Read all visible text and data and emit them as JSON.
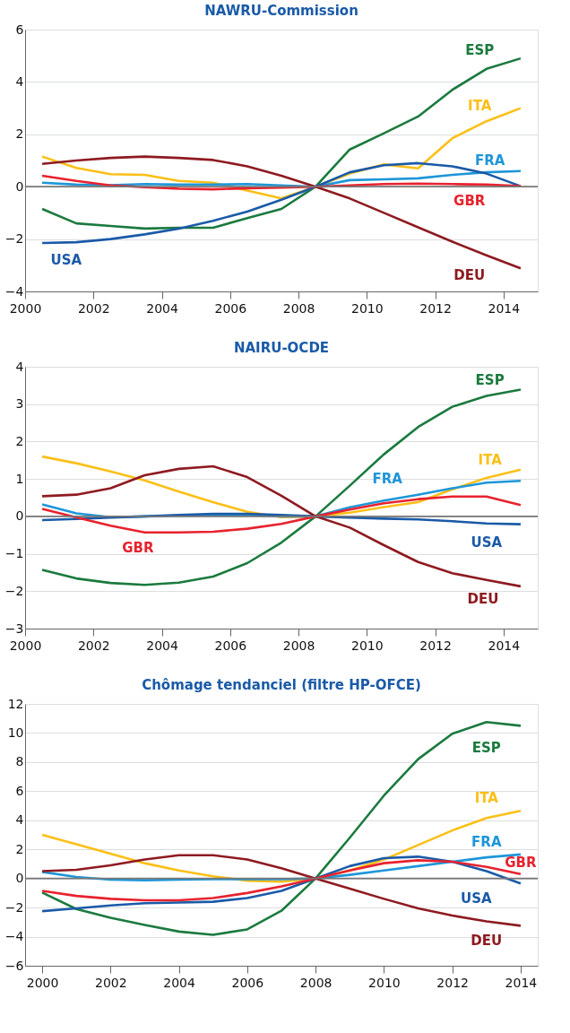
{
  "chart_data": [
    {
      "type": "line",
      "title": "NAWRU-Commission",
      "grid": "y",
      "legend": false,
      "xlim": [
        2000,
        2015
      ],
      "xticks": [
        2000,
        2002,
        2004,
        2006,
        2008,
        2010,
        2012,
        2014
      ],
      "ylim": [
        -4,
        6
      ],
      "yticks": [
        -4,
        -2,
        0,
        2,
        4,
        6
      ],
      "x": [
        2000.5,
        2001.5,
        2002.5,
        2003.5,
        2004.5,
        2005.5,
        2006.5,
        2007.5,
        2008.5,
        2009.5,
        2010.5,
        2011.5,
        2012.5,
        2013.5,
        2014.5
      ],
      "ref_lines": [
        {
          "axis": "y",
          "value": 0,
          "color": "#777777"
        }
      ],
      "series": [
        {
          "name": "ESP",
          "color": "#1a7a3e",
          "values": [
            -0.85,
            -1.4,
            -1.5,
            -1.6,
            -1.57,
            -1.57,
            -1.2,
            -0.85,
            0,
            1.42,
            2.04,
            2.68,
            3.7,
            4.5,
            4.9
          ]
        },
        {
          "name": "ITA",
          "color": "#fbbf16",
          "values": [
            1.15,
            0.72,
            0.48,
            0.45,
            0.22,
            0.15,
            -0.15,
            -0.45,
            0,
            0.5,
            0.85,
            0.7,
            1.85,
            2.5,
            3.0
          ]
        },
        {
          "name": "FRA",
          "color": "#1e96d8",
          "values": [
            0.15,
            0.08,
            0.06,
            0.1,
            0.08,
            0.08,
            0.1,
            0.05,
            0,
            0.25,
            0.28,
            0.32,
            0.45,
            0.55,
            0.6
          ]
        },
        {
          "name": "USA",
          "color": "#1a5aa8",
          "values": [
            -2.15,
            -2.12,
            -2.0,
            -1.82,
            -1.6,
            -1.3,
            -0.95,
            -0.5,
            0,
            0.55,
            0.82,
            0.9,
            0.78,
            0.5,
            0.02
          ]
        },
        {
          "name": "GBR",
          "color": "#e8222e",
          "values": [
            0.42,
            0.22,
            0.05,
            -0.02,
            -0.08,
            -0.1,
            -0.06,
            -0.03,
            0,
            0.05,
            0.1,
            0.12,
            0.1,
            0.08,
            0.02
          ]
        },
        {
          "name": "DEU",
          "color": "#8e1a20",
          "values": [
            0.87,
            1.0,
            1.1,
            1.15,
            1.1,
            1.02,
            0.78,
            0.42,
            0,
            -0.45,
            -1.0,
            -1.55,
            -2.1,
            -2.62,
            -3.12
          ]
        }
      ]
    },
    {
      "type": "line",
      "title": "NAIRU-OCDE",
      "grid": "y",
      "legend": false,
      "xlim": [
        2000,
        2015
      ],
      "xticks": [
        2000,
        2002,
        2004,
        2006,
        2008,
        2010,
        2012,
        2014
      ],
      "ylim": [
        -3,
        4
      ],
      "yticks": [
        -3,
        -2,
        -1,
        0,
        1,
        2,
        3,
        4
      ],
      "x": [
        2000.5,
        2001.5,
        2002.5,
        2003.5,
        2004.5,
        2005.5,
        2006.5,
        2007.5,
        2008.5,
        2009.5,
        2010.5,
        2011.5,
        2012.5,
        2013.5,
        2014.5
      ],
      "ref_lines": [
        {
          "axis": "y",
          "value": 0,
          "color": "#777777"
        }
      ],
      "series": [
        {
          "name": "ESP",
          "color": "#1a7a3e",
          "values": [
            -1.43,
            -1.66,
            -1.78,
            -1.83,
            -1.77,
            -1.61,
            -1.25,
            -0.7,
            0,
            0.82,
            1.66,
            2.39,
            2.93,
            3.22,
            3.39
          ]
        },
        {
          "name": "ITA",
          "color": "#fbbf16",
          "values": [
            1.6,
            1.42,
            1.2,
            0.96,
            0.66,
            0.38,
            0.12,
            -0.02,
            0,
            0.1,
            0.25,
            0.38,
            0.72,
            1.03,
            1.25
          ]
        },
        {
          "name": "FRA",
          "color": "#1e96d8",
          "values": [
            0.32,
            0.08,
            -0.02,
            0.0,
            0.02,
            0.03,
            0.04,
            0.0,
            0,
            0.24,
            0.42,
            0.58,
            0.75,
            0.9,
            0.95
          ]
        },
        {
          "name": "USA",
          "color": "#1a5aa8",
          "values": [
            -0.1,
            -0.07,
            -0.03,
            0.0,
            0.04,
            0.07,
            0.07,
            0.04,
            0,
            -0.03,
            -0.06,
            -0.08,
            -0.13,
            -0.19,
            -0.21
          ]
        },
        {
          "name": "GBR",
          "color": "#e8222e",
          "values": [
            0.2,
            -0.03,
            -0.25,
            -0.43,
            -0.43,
            -0.41,
            -0.33,
            -0.2,
            0,
            0.18,
            0.35,
            0.46,
            0.53,
            0.53,
            0.3
          ]
        },
        {
          "name": "DEU",
          "color": "#8e1a20",
          "values": [
            0.54,
            0.58,
            0.75,
            1.1,
            1.27,
            1.34,
            1.05,
            0.55,
            0,
            -0.3,
            -0.77,
            -1.22,
            -1.52,
            -1.7,
            -1.87
          ]
        }
      ]
    },
    {
      "type": "line",
      "title": "Chômage tendanciel (filtre HP-OFCE)",
      "grid": "y",
      "legend": false,
      "xlim": [
        1999.5,
        2014.5
      ],
      "xticks": [
        2000,
        2002,
        2004,
        2006,
        2008,
        2010,
        2012,
        2014
      ],
      "ylim": [
        -6,
        12
      ],
      "yticks": [
        -6,
        -4,
        -2,
        0,
        2,
        4,
        6,
        8,
        10,
        12
      ],
      "x": [
        2000,
        2001,
        2002,
        2003,
        2004,
        2005,
        2006,
        2007,
        2008,
        2009,
        2010,
        2011,
        2012,
        2013,
        2014
      ],
      "ref_lines": [
        {
          "axis": "y",
          "value": 0,
          "color": "#777777"
        }
      ],
      "series": [
        {
          "name": "ESP",
          "color": "#1a7a3e",
          "values": [
            -0.97,
            -2.1,
            -2.7,
            -3.2,
            -3.65,
            -3.87,
            -3.5,
            -2.22,
            0,
            2.8,
            5.7,
            8.2,
            9.95,
            10.75,
            10.5
          ]
        },
        {
          "name": "ITA",
          "color": "#fbbf16",
          "values": [
            3.0,
            2.35,
            1.7,
            1.05,
            0.55,
            0.15,
            -0.15,
            -0.22,
            0,
            0.55,
            1.3,
            2.3,
            3.3,
            4.15,
            4.65
          ]
        },
        {
          "name": "FRA",
          "color": "#1e96d8",
          "values": [
            0.45,
            0.1,
            -0.08,
            -0.12,
            -0.08,
            -0.05,
            -0.05,
            -0.05,
            0,
            0.25,
            0.55,
            0.85,
            1.15,
            1.45,
            1.65
          ]
        },
        {
          "name": "USA",
          "color": "#1a5aa8",
          "values": [
            -2.25,
            -2.05,
            -1.85,
            -1.7,
            -1.65,
            -1.6,
            -1.35,
            -0.85,
            0,
            0.85,
            1.4,
            1.5,
            1.15,
            0.5,
            -0.35
          ]
        },
        {
          "name": "GBR",
          "color": "#e8222e",
          "values": [
            -0.85,
            -1.2,
            -1.4,
            -1.5,
            -1.5,
            -1.35,
            -1.0,
            -0.55,
            0,
            0.55,
            1.05,
            1.25,
            1.15,
            0.8,
            0.3
          ]
        },
        {
          "name": "DEU",
          "color": "#8e1a20",
          "values": [
            0.5,
            0.6,
            0.9,
            1.3,
            1.6,
            1.6,
            1.3,
            0.7,
            0,
            -0.7,
            -1.4,
            -2.05,
            -2.55,
            -2.95,
            -3.25
          ]
        }
      ]
    }
  ]
}
